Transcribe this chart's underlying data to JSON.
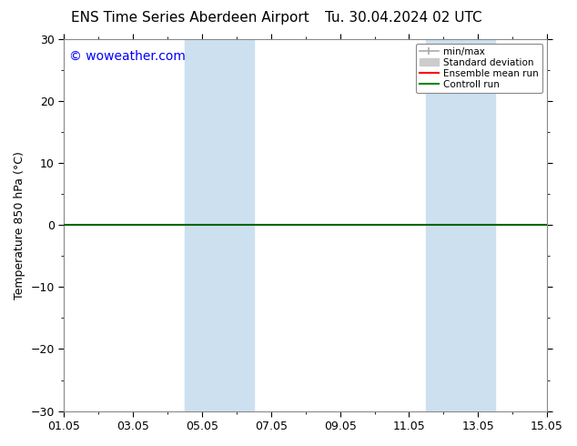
{
  "title": "ENS Time Series Aberdeen Airport",
  "title2": "Tu. 30.04.2024 02 UTC",
  "ylabel": "Temperature 850 hPa (°C)",
  "ylim": [
    -30,
    30
  ],
  "yticks": [
    -30,
    -20,
    -10,
    0,
    10,
    20,
    30
  ],
  "xlim": [
    0,
    14
  ],
  "xtick_labels": [
    "01.05",
    "03.05",
    "05.05",
    "07.05",
    "09.05",
    "11.05",
    "13.05",
    "15.05"
  ],
  "xtick_positions": [
    0,
    2,
    4,
    6,
    8,
    10,
    12,
    14
  ],
  "watermark": "© woweather.com",
  "watermark_color": "#0000ff",
  "bg_color": "#ffffff",
  "plot_bg_color": "#ffffff",
  "shaded_bands": [
    {
      "x_start": 3.5,
      "x_end": 5.5,
      "color": "#cce0f0"
    },
    {
      "x_start": 10.5,
      "x_end": 12.5,
      "color": "#cce0f0"
    }
  ],
  "zero_line_color": "#006600",
  "zero_line_lw": 1.5,
  "legend_minmax_color": "#aaaaaa",
  "legend_std_color": "#cccccc",
  "legend_ensemble_color": "#ff0000",
  "legend_control_color": "#008800",
  "title_fontsize": 11,
  "tick_fontsize": 9,
  "label_fontsize": 9,
  "watermark_fontsize": 10
}
